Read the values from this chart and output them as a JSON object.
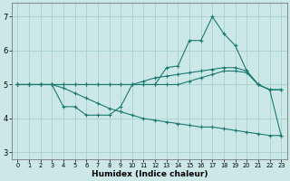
{
  "title": "",
  "xlabel": "Humidex (Indice chaleur)",
  "ylabel": "",
  "xlim": [
    -0.5,
    23.5
  ],
  "ylim": [
    2.8,
    7.4
  ],
  "yticks": [
    3,
    4,
    5,
    6,
    7
  ],
  "xtick_labels": [
    "0",
    "1",
    "2",
    "3",
    "4",
    "5",
    "6",
    "7",
    "8",
    "9",
    "10",
    "11",
    "12",
    "13",
    "14",
    "15",
    "16",
    "17",
    "18",
    "19",
    "20",
    "21",
    "22",
    "23"
  ],
  "background_color": "#cce8e6",
  "grid_color": "#aad4d0",
  "line_color": "#1a7a70",
  "series": [
    {
      "x": [
        0,
        1,
        2,
        3,
        4,
        5,
        6,
        7,
        8,
        9,
        10,
        11,
        12,
        13,
        14,
        15,
        16,
        17,
        18,
        19,
        20,
        21,
        22,
        23
      ],
      "y": [
        5.0,
        5.0,
        5.0,
        5.0,
        4.35,
        4.35,
        4.1,
        4.1,
        4.1,
        4.35,
        5.0,
        5.0,
        5.0,
        5.5,
        5.55,
        6.3,
        6.3,
        7.0,
        6.5,
        6.15,
        5.4,
        5.0,
        4.85,
        4.85
      ]
    },
    {
      "x": [
        0,
        1,
        2,
        3,
        4,
        5,
        6,
        7,
        8,
        9,
        10,
        11,
        12,
        13,
        14,
        15,
        16,
        17,
        18,
        19,
        20,
        21,
        22,
        23
      ],
      "y": [
        5.0,
        5.0,
        5.0,
        5.0,
        5.0,
        5.0,
        5.0,
        5.0,
        5.0,
        5.0,
        5.0,
        5.0,
        5.0,
        5.0,
        5.0,
        5.1,
        5.2,
        5.3,
        5.4,
        5.4,
        5.35,
        5.0,
        4.85,
        3.5
      ]
    },
    {
      "x": [
        0,
        1,
        2,
        3,
        4,
        5,
        6,
        7,
        8,
        9,
        10,
        11,
        12,
        13,
        14,
        15,
        16,
        17,
        18,
        19,
        20,
        21,
        22,
        23
      ],
      "y": [
        5.0,
        5.0,
        5.0,
        5.0,
        5.0,
        5.0,
        5.0,
        5.0,
        5.0,
        5.0,
        5.0,
        5.1,
        5.2,
        5.25,
        5.3,
        5.35,
        5.4,
        5.45,
        5.5,
        5.5,
        5.4,
        5.0,
        4.85,
        4.85
      ]
    },
    {
      "x": [
        0,
        1,
        2,
        3,
        4,
        5,
        6,
        7,
        8,
        9,
        10,
        11,
        12,
        13,
        14,
        15,
        16,
        17,
        18,
        19,
        20,
        21,
        22,
        23
      ],
      "y": [
        5.0,
        5.0,
        5.0,
        5.0,
        4.9,
        4.75,
        4.6,
        4.45,
        4.3,
        4.2,
        4.1,
        4.0,
        3.95,
        3.9,
        3.85,
        3.8,
        3.75,
        3.75,
        3.7,
        3.65,
        3.6,
        3.55,
        3.5,
        3.5
      ]
    }
  ]
}
